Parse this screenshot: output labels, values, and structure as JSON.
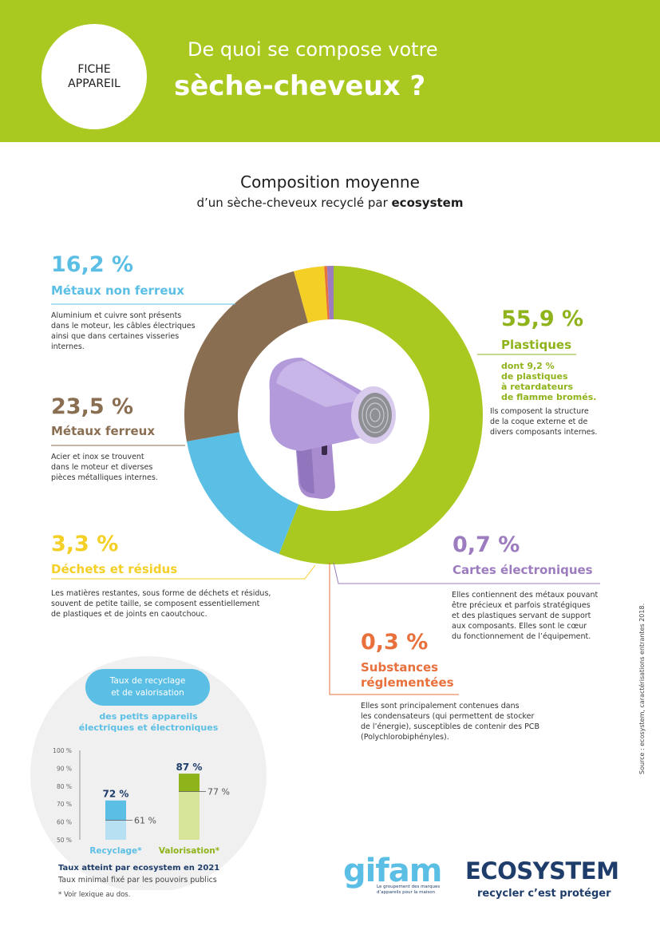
{
  "header": {
    "badge": [
      "FICHE",
      "APPAREIL"
    ],
    "title_line1": "De quoi se compose votre",
    "title_line2": "sèche-cheveux ?"
  },
  "composition": {
    "title": "Composition moyenne",
    "subtitle_prefix": "d’un sèche-cheveux recyclé par ",
    "subtitle_brand": "ecosystem"
  },
  "chart_data": [
    {
      "type": "pie",
      "style": "donut",
      "title": "Composition moyenne d’un sèche-cheveux recyclé par ecosystem",
      "unit": "%",
      "slices": [
        {
          "label": "Plastiques",
          "value": 55.9,
          "color": "#a9c921"
        },
        {
          "label": "Métaux non ferreux",
          "value": 16.2,
          "color": "#5bbfe5"
        },
        {
          "label": "Métaux ferreux",
          "value": 23.5,
          "color": "#8a6e52"
        },
        {
          "label": "Déchets et résidus",
          "value": 3.3,
          "color": "#f4cf26"
        },
        {
          "label": "Substances réglementées",
          "value": 0.3,
          "color": "#e8703c"
        },
        {
          "label": "Cartes électroniques",
          "value": 0.7,
          "color": "#9c7cbf"
        }
      ]
    },
    {
      "type": "bar",
      "title": "Taux de recyclage et de valorisation des petits appareils électriques et électroniques",
      "categories": [
        "Recyclage*",
        "Valorisation*"
      ],
      "series": [
        {
          "name": "Taux atteint par ecosystem en 2021",
          "values": [
            72,
            87
          ]
        },
        {
          "name": "Taux minimal fixé par les pouvoirs publics",
          "values": [
            61,
            77
          ]
        }
      ],
      "ylim": [
        50,
        100
      ],
      "yticks": [
        "50 %",
        "60 %",
        "70 %",
        "80 %",
        "90 %",
        "100 %"
      ],
      "colors": {
        "recyclage": "#5bbfe5",
        "recyclage_light": "#b7e1f3",
        "valorisation": "#8fb31a",
        "valorisation_light": "#d6e59a"
      }
    }
  ],
  "callouts": {
    "metaux_non_ferreux": {
      "pct": "16,2 %",
      "label": "Métaux non ferreux",
      "desc": [
        "Aluminium et cuivre sont présents",
        "dans le moteur, les câbles électriques",
        "ainsi que dans certaines visseries",
        "internes."
      ]
    },
    "metaux_ferreux": {
      "pct": "23,5 %",
      "label": "Métaux ferreux",
      "desc": [
        "Acier et inox se trouvent",
        "dans le moteur et diverses",
        "pièces métalliques internes."
      ]
    },
    "dechets": {
      "pct": "3,3 %",
      "label": "Déchets et résidus",
      "desc": [
        "Les matières restantes, sous forme de déchets et résidus,",
        "souvent de petite taille, se composent essentiellement",
        "de plastiques et de joints en caoutchouc."
      ]
    },
    "plastiques": {
      "pct": "55,9 %",
      "label": "Plastiques",
      "highlight": [
        "dont 9,2 %",
        "de plastiques",
        "à retardateurs",
        "de flamme bromés."
      ],
      "desc": [
        "Ils composent la structure",
        "de la coque externe et de",
        "divers composants internes."
      ]
    },
    "cartes": {
      "pct": "0,7 %",
      "label": "Cartes électroniques",
      "desc": [
        "Elles contiennent des métaux pouvant",
        "être précieux et parfois stratégiques",
        "et des plastiques servant de support",
        "aux composants. Elles sont le cœur",
        "du fonctionnement de l’équipement."
      ]
    },
    "substances": {
      "pct": "0,3 %",
      "label": [
        "Substances",
        "réglementées"
      ],
      "desc": [
        "Elles sont principalement contenues dans",
        "les condensateurs (qui permettent de stocker",
        "de l’énergie), susceptibles de contenir des PCB",
        "(Polychlorobiphényles)."
      ]
    }
  },
  "recycling": {
    "pill": [
      "Taux de recyclage",
      "et de valorisation"
    ],
    "subtitle": [
      "des petits appareils",
      "électriques et électroniques"
    ],
    "bar_labels": [
      "72 %",
      "87 %"
    ],
    "min_labels": [
      "61 %",
      "77 %"
    ],
    "legend_bold": "Taux atteint par ecosystem en 2021",
    "legend_light": "Taux minimal fixé par les pouvoirs publics",
    "footnote": "* Voir lexique au dos."
  },
  "source": "Source : ecosystem, caractérisations entrantes 2018.",
  "logos": {
    "gifam": "gifam",
    "gifam_tagline": [
      "Le groupement des marques",
      "d’appareils pour la maison"
    ],
    "ecosystem": "ECOSYSTEM",
    "ecosystem_tagline": "recycler c’est protéger"
  }
}
